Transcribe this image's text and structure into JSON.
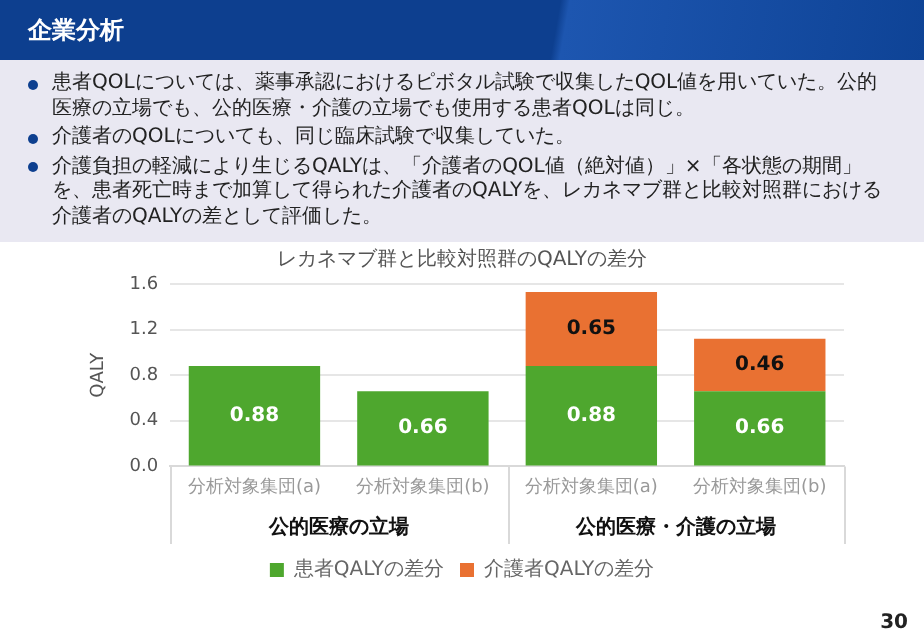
{
  "chart_data": {
    "type": "bar",
    "title": "レカネマブ群と比較対照群のQALYの差分",
    "ylabel": "QALY",
    "categories": [
      "分析対象集団(a)",
      "分析対象集団(b)",
      "分析対象集団(a)",
      "分析対象集団(b)"
    ],
    "series": [
      {
        "name": "患者QALYの差分",
        "color": "#4ea72e",
        "values": [
          0.88,
          0.66,
          0.88,
          0.66
        ]
      },
      {
        "name": "介護者QALYの差分",
        "color": "#e97132",
        "values": [
          null,
          null,
          0.65,
          0.46
        ]
      }
    ],
    "stacked": true,
    "data_labels": true,
    "grid": "y",
    "legend": "bottom",
    "ylim": [
      0,
      1.6
    ],
    "yticks": [
      {
        "value": 0,
        "label": "0.0"
      },
      0.4,
      0.8,
      1.2,
      1.6
    ],
    "annotations": [
      "企業分析",
      "患者QOLについては、薬事承認におけるピボタル試験で収集したQOL値を用いていた。公的医療の立場でも、公的医療・介護の立場でも使用する患者QOLは同じ。",
      "介護者のQOLについても、同じ臨床試験で収集していた。",
      "介護負担の軽減により生じるQALYは、「介護者のQOL値（絶対値）」×「各状態の期間」を、患者死亡時まで加算して得られた介護者のQALYを、レカネマブ群と比較対照群における介護者のQALYの差として評価した。",
      "公的医療の立場",
      "公的医療・介護の立場",
      "30"
    ]
  }
}
